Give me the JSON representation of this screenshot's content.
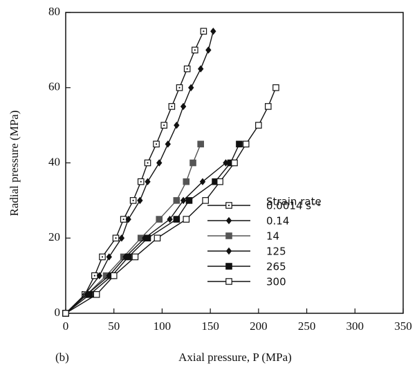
{
  "chart_data": {
    "type": "line",
    "panel_label": "(b)",
    "x_label": "Axial pressure, P (MPa)",
    "y_label": "Radial pressure (MPa)",
    "legend_title": "Strain rate",
    "xlim": [
      0,
      350
    ],
    "xticks": [
      0,
      50,
      100,
      150,
      200,
      250,
      300,
      350
    ],
    "ylim": [
      0,
      80
    ],
    "yticks": [
      0,
      20,
      40,
      60,
      80
    ],
    "series": [
      {
        "name": "0.0014 s⁻¹",
        "color": "#111111",
        "marker": "dotted-square",
        "x": [
          0,
          20,
          30,
          38,
          52,
          60,
          70,
          78,
          85,
          94,
          102,
          110,
          118,
          126,
          134,
          143
        ],
        "values": [
          0,
          5,
          10,
          15,
          20,
          25,
          30,
          35,
          40,
          45,
          50,
          55,
          60,
          65,
          70,
          75
        ]
      },
      {
        "name": "0.14",
        "color": "#111111",
        "marker": "diamond",
        "x": [
          0,
          20,
          35,
          45,
          58,
          65,
          77,
          85,
          97,
          106,
          115,
          122,
          130,
          140,
          148,
          153
        ],
        "values": [
          0,
          5,
          10,
          15,
          20,
          25,
          30,
          35,
          40,
          45,
          50,
          55,
          60,
          65,
          70,
          75
        ]
      },
      {
        "name": "14",
        "color": "#555555",
        "marker": "square",
        "x": [
          0,
          22,
          42,
          60,
          78,
          97,
          115,
          125,
          132,
          140
        ],
        "values": [
          0,
          5,
          10,
          15,
          20,
          25,
          30,
          35,
          40,
          45
        ]
      },
      {
        "name": "125",
        "color": "#111111",
        "marker": "diamond",
        "x": [
          0,
          22,
          45,
          62,
          82,
          108,
          122,
          142,
          166
        ],
        "values": [
          0,
          5,
          10,
          15,
          20,
          25,
          30,
          35,
          40
        ]
      },
      {
        "name": "265",
        "color": "#111111",
        "marker": "square",
        "x": [
          0,
          25,
          48,
          65,
          85,
          115,
          128,
          155,
          171,
          180
        ],
        "values": [
          0,
          5,
          10,
          15,
          20,
          25,
          30,
          35,
          40,
          45
        ]
      },
      {
        "name": "300",
        "color": "#111111",
        "marker": "open-square",
        "x": [
          0,
          32,
          50,
          72,
          95,
          125,
          145,
          160,
          175,
          187,
          200,
          210,
          218
        ],
        "values": [
          0,
          5,
          10,
          15,
          20,
          25,
          30,
          35,
          40,
          45,
          50,
          55,
          60
        ]
      }
    ]
  }
}
